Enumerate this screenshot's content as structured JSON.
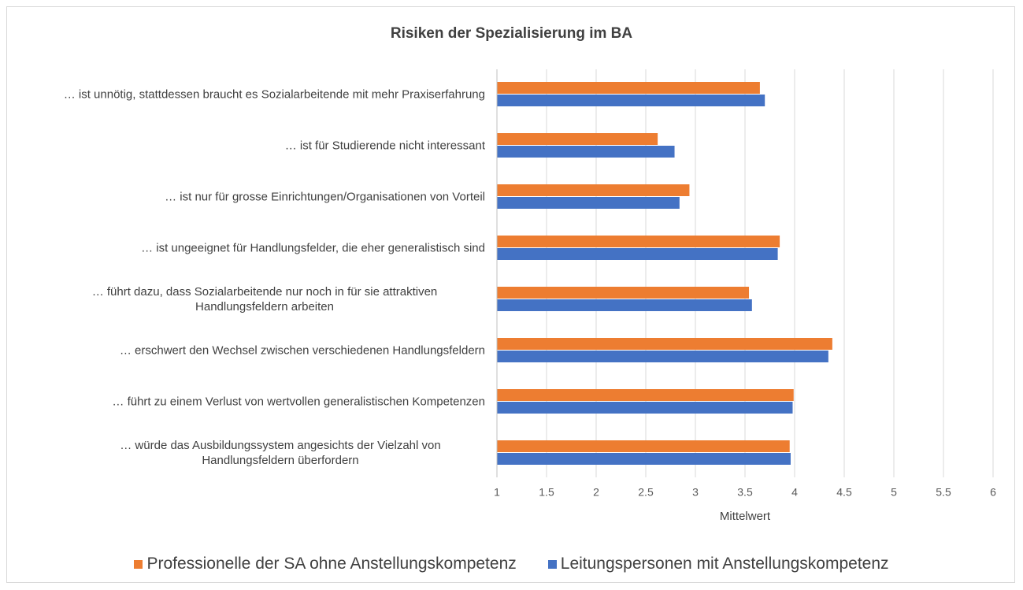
{
  "chart_data": {
    "type": "barh",
    "title": "Risiken der Spezialisierung im BA",
    "xlabel": "Mittelwert",
    "categories": [
      "… ist unnötig, stattdessen braucht es Sozialarbeitende mit mehr Praxiserfahrung",
      "… ist für Studierende nicht interessant",
      "… ist nur für grosse Einrichtungen/Organisationen von Vorteil",
      "… ist ungeeignet für Handlungsfelder, die eher generalistisch sind",
      "… führt dazu, dass Sozialarbeitende nur noch in für sie attraktiven Handlungsfeldern arbeiten",
      "… erschwert den Wechsel zwischen verschiedenen Handlungsfeldern",
      "… führt zu einem Verlust von wertvollen generalistischen Kompetenzen",
      "… würde das Ausbildungssystem angesichts der Vielzahl von Handlungsfeldern überfordern"
    ],
    "series": [
      {
        "name": "Professionelle der SA ohne Anstellungskompetenz",
        "color": "#ed7d31",
        "values": [
          3.65,
          2.62,
          2.94,
          3.85,
          3.54,
          4.38,
          3.99,
          3.95
        ]
      },
      {
        "name": "Leitungspersonen mit Anstellungskompetenz",
        "color": "#4472c4",
        "values": [
          3.7,
          2.79,
          2.84,
          3.83,
          3.57,
          4.34,
          3.98,
          3.96
        ]
      }
    ],
    "xlim": [
      1,
      6
    ],
    "xticks": [
      1,
      1.5,
      2,
      2.5,
      3,
      3.5,
      4,
      4.5,
      5,
      5.5,
      6
    ],
    "grid": true,
    "legend": "bottom"
  }
}
